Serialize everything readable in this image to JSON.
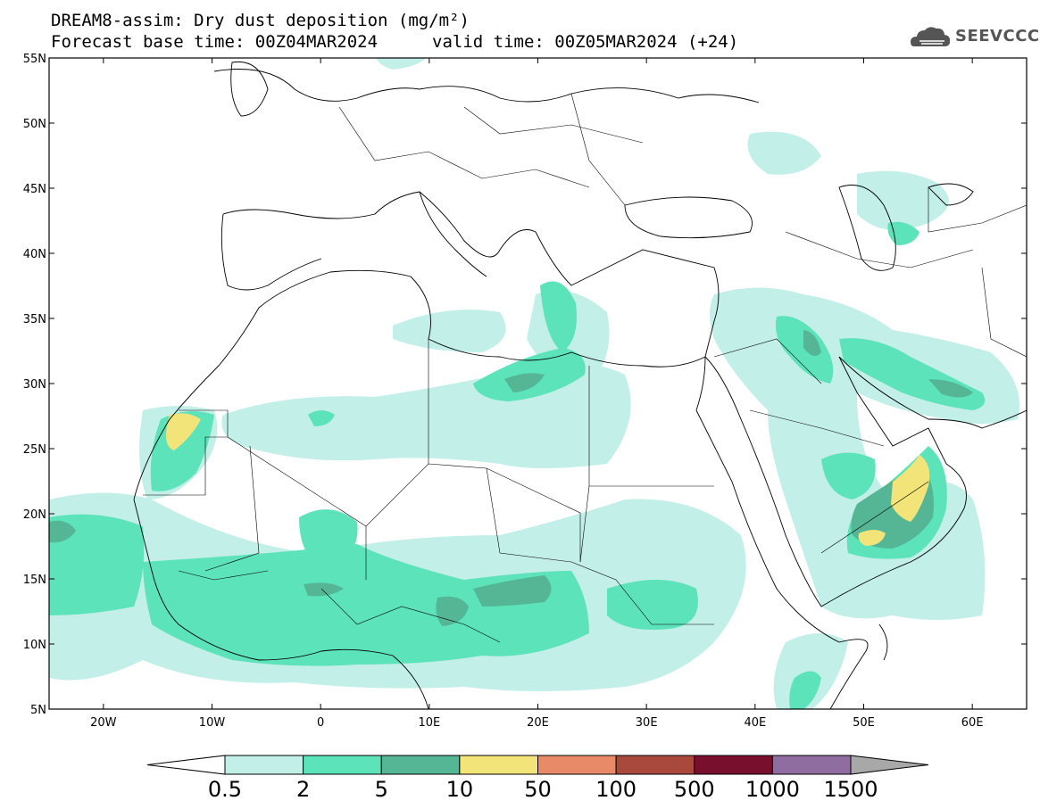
{
  "header": {
    "title_line1": "DREAM8-assim: Dry dust deposition (mg/m²)",
    "base_time": "Forecast base time: 00Z04MAR2024",
    "valid_time": "valid time: 00Z05MAR2024 (+24)",
    "logo_text": "SEEVCCC"
  },
  "map": {
    "lon_range": [
      -25,
      65
    ],
    "lat_range": [
      5,
      55
    ],
    "lat_ticks": [
      "5N",
      "10N",
      "15N",
      "20N",
      "25N",
      "30N",
      "35N",
      "40N",
      "45N",
      "50N",
      "55N"
    ],
    "lon_ticks": [
      "20W",
      "10W",
      "0",
      "10E",
      "20E",
      "30E",
      "40E",
      "50E",
      "60E"
    ]
  },
  "colorbar": {
    "labels": [
      "0.5",
      "2",
      "5",
      "10",
      "50",
      "100",
      "500",
      "1000",
      "1500"
    ],
    "colors": [
      "#c3efe9",
      "#5de3b9",
      "#54b694",
      "#f2e478",
      "#e88a67",
      "#a9483c",
      "#78102d",
      "#8f6da1",
      "#a8a8a8"
    ]
  }
}
